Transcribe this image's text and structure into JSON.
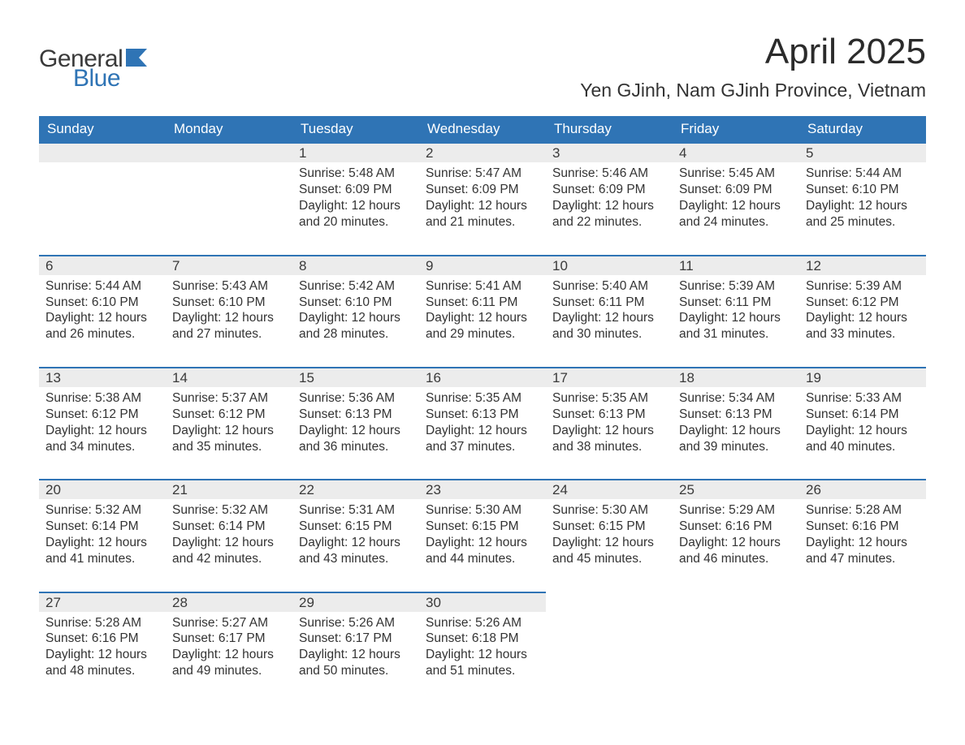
{
  "logo": {
    "word1": "General",
    "word2": "Blue",
    "color_dark": "#3a3a3a",
    "color_blue": "#2f74b5"
  },
  "title": "April 2025",
  "subtitle": "Yen GJinh, Nam GJinh Province, Vietnam",
  "colors": {
    "header_bg": "#2f74b5",
    "header_text": "#ffffff",
    "daynum_bg": "#ececec",
    "row_border": "#2f74b5",
    "body_text": "#333333",
    "page_bg": "#ffffff"
  },
  "fontsize": {
    "title": 44,
    "subtitle": 23,
    "dayhead": 17,
    "body": 15.5
  },
  "daynames": [
    "Sunday",
    "Monday",
    "Tuesday",
    "Wednesday",
    "Thursday",
    "Friday",
    "Saturday"
  ],
  "labels": {
    "sunrise": "Sunrise: ",
    "sunset": "Sunset: ",
    "daylight": "Daylight: "
  },
  "weeks": [
    [
      null,
      null,
      {
        "n": "1",
        "sunrise": "5:48 AM",
        "sunset": "6:09 PM",
        "daylight": "12 hours and 20 minutes."
      },
      {
        "n": "2",
        "sunrise": "5:47 AM",
        "sunset": "6:09 PM",
        "daylight": "12 hours and 21 minutes."
      },
      {
        "n": "3",
        "sunrise": "5:46 AM",
        "sunset": "6:09 PM",
        "daylight": "12 hours and 22 minutes."
      },
      {
        "n": "4",
        "sunrise": "5:45 AM",
        "sunset": "6:09 PM",
        "daylight": "12 hours and 24 minutes."
      },
      {
        "n": "5",
        "sunrise": "5:44 AM",
        "sunset": "6:10 PM",
        "daylight": "12 hours and 25 minutes."
      }
    ],
    [
      {
        "n": "6",
        "sunrise": "5:44 AM",
        "sunset": "6:10 PM",
        "daylight": "12 hours and 26 minutes."
      },
      {
        "n": "7",
        "sunrise": "5:43 AM",
        "sunset": "6:10 PM",
        "daylight": "12 hours and 27 minutes."
      },
      {
        "n": "8",
        "sunrise": "5:42 AM",
        "sunset": "6:10 PM",
        "daylight": "12 hours and 28 minutes."
      },
      {
        "n": "9",
        "sunrise": "5:41 AM",
        "sunset": "6:11 PM",
        "daylight": "12 hours and 29 minutes."
      },
      {
        "n": "10",
        "sunrise": "5:40 AM",
        "sunset": "6:11 PM",
        "daylight": "12 hours and 30 minutes."
      },
      {
        "n": "11",
        "sunrise": "5:39 AM",
        "sunset": "6:11 PM",
        "daylight": "12 hours and 31 minutes."
      },
      {
        "n": "12",
        "sunrise": "5:39 AM",
        "sunset": "6:12 PM",
        "daylight": "12 hours and 33 minutes."
      }
    ],
    [
      {
        "n": "13",
        "sunrise": "5:38 AM",
        "sunset": "6:12 PM",
        "daylight": "12 hours and 34 minutes."
      },
      {
        "n": "14",
        "sunrise": "5:37 AM",
        "sunset": "6:12 PM",
        "daylight": "12 hours and 35 minutes."
      },
      {
        "n": "15",
        "sunrise": "5:36 AM",
        "sunset": "6:13 PM",
        "daylight": "12 hours and 36 minutes."
      },
      {
        "n": "16",
        "sunrise": "5:35 AM",
        "sunset": "6:13 PM",
        "daylight": "12 hours and 37 minutes."
      },
      {
        "n": "17",
        "sunrise": "5:35 AM",
        "sunset": "6:13 PM",
        "daylight": "12 hours and 38 minutes."
      },
      {
        "n": "18",
        "sunrise": "5:34 AM",
        "sunset": "6:13 PM",
        "daylight": "12 hours and 39 minutes."
      },
      {
        "n": "19",
        "sunrise": "5:33 AM",
        "sunset": "6:14 PM",
        "daylight": "12 hours and 40 minutes."
      }
    ],
    [
      {
        "n": "20",
        "sunrise": "5:32 AM",
        "sunset": "6:14 PM",
        "daylight": "12 hours and 41 minutes."
      },
      {
        "n": "21",
        "sunrise": "5:32 AM",
        "sunset": "6:14 PM",
        "daylight": "12 hours and 42 minutes."
      },
      {
        "n": "22",
        "sunrise": "5:31 AM",
        "sunset": "6:15 PM",
        "daylight": "12 hours and 43 minutes."
      },
      {
        "n": "23",
        "sunrise": "5:30 AM",
        "sunset": "6:15 PM",
        "daylight": "12 hours and 44 minutes."
      },
      {
        "n": "24",
        "sunrise": "5:30 AM",
        "sunset": "6:15 PM",
        "daylight": "12 hours and 45 minutes."
      },
      {
        "n": "25",
        "sunrise": "5:29 AM",
        "sunset": "6:16 PM",
        "daylight": "12 hours and 46 minutes."
      },
      {
        "n": "26",
        "sunrise": "5:28 AM",
        "sunset": "6:16 PM",
        "daylight": "12 hours and 47 minutes."
      }
    ],
    [
      {
        "n": "27",
        "sunrise": "5:28 AM",
        "sunset": "6:16 PM",
        "daylight": "12 hours and 48 minutes."
      },
      {
        "n": "28",
        "sunrise": "5:27 AM",
        "sunset": "6:17 PM",
        "daylight": "12 hours and 49 minutes."
      },
      {
        "n": "29",
        "sunrise": "5:26 AM",
        "sunset": "6:17 PM",
        "daylight": "12 hours and 50 minutes."
      },
      {
        "n": "30",
        "sunrise": "5:26 AM",
        "sunset": "6:18 PM",
        "daylight": "12 hours and 51 minutes."
      },
      null,
      null,
      null
    ]
  ]
}
